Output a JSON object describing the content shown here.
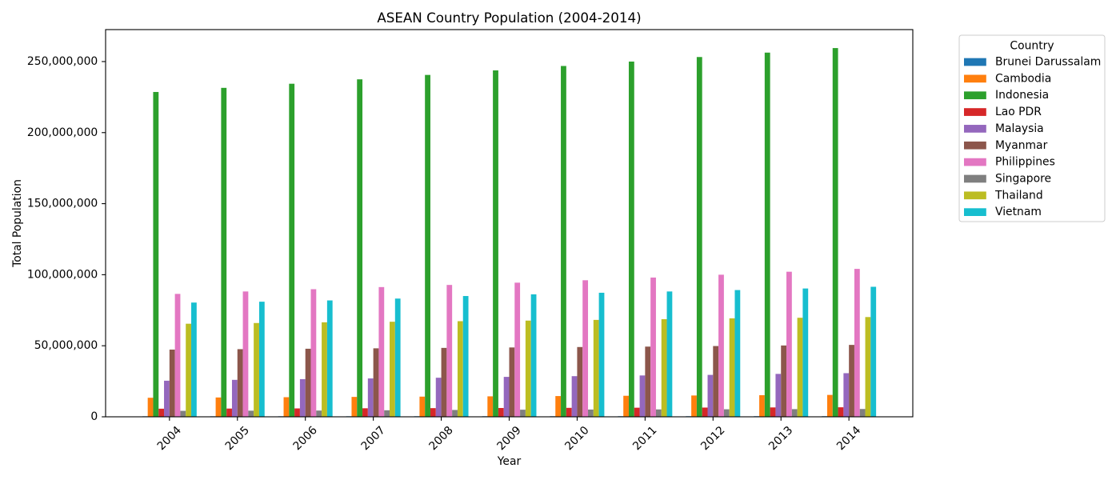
{
  "chart_data": {
    "type": "bar",
    "title": "ASEAN Country Population (2004-2014)",
    "xlabel": "Year",
    "ylabel": "Total Population",
    "categories": [
      "2004",
      "2005",
      "2006",
      "2007",
      "2008",
      "2009",
      "2010",
      "2011",
      "2012",
      "2013",
      "2014"
    ],
    "ylim": [
      0,
      272500000
    ],
    "yticks": [
      0,
      50000000,
      100000000,
      150000000,
      200000000,
      250000000
    ],
    "ytick_labels": [
      "0",
      "50,000,000",
      "100,000,000",
      "150,000,000",
      "200,000,000",
      "250,000,000"
    ],
    "grid": false,
    "legend_title": "Country",
    "legend_position": "outside upper right",
    "series": [
      {
        "name": "Brunei Darussalam",
        "color": "#1f77b4",
        "values": [
          362000,
          368000,
          374000,
          380000,
          386000,
          392000,
          397000,
          402000,
          407000,
          412000,
          417000
        ]
      },
      {
        "name": "Cambodia",
        "color": "#ff7f0e",
        "values": [
          13400000,
          13600000,
          13800000,
          14000000,
          14200000,
          14400000,
          14600000,
          14800000,
          15000000,
          15200000,
          15400000
        ]
      },
      {
        "name": "Indonesia",
        "color": "#2ca02c",
        "values": [
          228600000,
          231500000,
          234400000,
          237500000,
          240600000,
          243800000,
          246900000,
          250000000,
          253200000,
          256300000,
          259500000
        ]
      },
      {
        "name": "Lao PDR",
        "color": "#d62728",
        "values": [
          5700000,
          5800000,
          5900000,
          6000000,
          6100000,
          6200000,
          6300000,
          6400000,
          6500000,
          6600000,
          6700000
        ]
      },
      {
        "name": "Malaysia",
        "color": "#9467bd",
        "values": [
          25400000,
          26000000,
          26500000,
          27000000,
          27500000,
          28100000,
          28600000,
          29100000,
          29500000,
          30200000,
          30700000
        ]
      },
      {
        "name": "Myanmar",
        "color": "#8c564b",
        "values": [
          47300000,
          47600000,
          47900000,
          48200000,
          48500000,
          48800000,
          49100000,
          49400000,
          49800000,
          50200000,
          50600000
        ]
      },
      {
        "name": "Philippines",
        "color": "#e377c2",
        "values": [
          86500000,
          88200000,
          89800000,
          91300000,
          92800000,
          94400000,
          96100000,
          98000000,
          100000000,
          102100000,
          104100000
        ]
      },
      {
        "name": "Singapore",
        "color": "#7f7f7f",
        "values": [
          4200000,
          4300000,
          4400000,
          4600000,
          4800000,
          5000000,
          5100000,
          5200000,
          5300000,
          5400000,
          5500000
        ]
      },
      {
        "name": "Thailand",
        "color": "#bcbd22",
        "values": [
          65500000,
          66000000,
          66500000,
          66900000,
          67300000,
          67700000,
          68200000,
          68700000,
          69300000,
          69700000,
          70200000
        ]
      },
      {
        "name": "Vietnam",
        "color": "#17becf",
        "values": [
          80400000,
          81000000,
          81900000,
          83200000,
          85000000,
          86200000,
          87300000,
          88200000,
          89200000,
          90300000,
          91500000
        ]
      }
    ]
  }
}
